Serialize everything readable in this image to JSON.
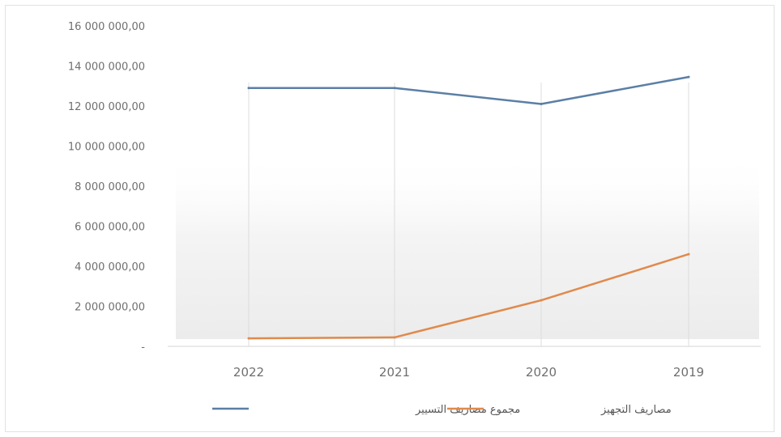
{
  "chart_data": {
    "type": "line",
    "categories": [
      "2022",
      "2021",
      "2020",
      "2019"
    ],
    "y_ticks": [
      "16 000 000,00",
      "14 000 000,00",
      "12 000 000,00",
      "10 000 000,00",
      "8 000 000,00",
      "6 000 000,00",
      "4 000 000,00",
      "2 000 000,00",
      "-"
    ],
    "ylim": [
      0,
      16000000
    ],
    "grid": "vertical",
    "legend_position": "bottom",
    "series": [
      {
        "name": "مجموع مصاريف التسيير",
        "color": "#5b7fa6",
        "values": [
          12900000,
          12900000,
          12100000,
          13450000
        ]
      },
      {
        "name": "مصاريف التجهيز",
        "color": "#e08a4c",
        "values": [
          400000,
          450000,
          2300000,
          4600000
        ]
      }
    ]
  }
}
